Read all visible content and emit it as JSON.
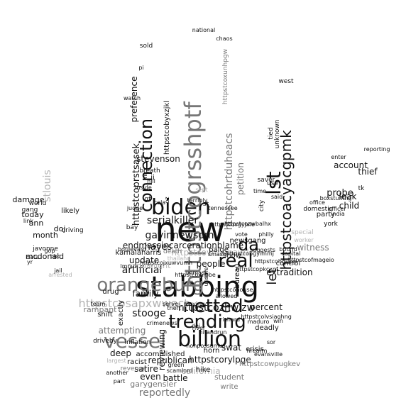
{
  "colors": {
    "background": "#ffffff",
    "dark": "#111111",
    "mid": "#777777",
    "light": "#b3b3b3"
  },
  "words": [
    {
      "text": "new",
      "weight": 100,
      "tone": "dark",
      "dir": "h"
    },
    {
      "text": "stabbing",
      "weight": 80,
      "tone": "dark",
      "dir": "h"
    },
    {
      "text": "biden",
      "weight": 72,
      "tone": "dark",
      "dir": "h"
    },
    {
      "text": "billion",
      "weight": 62,
      "tone": "dark",
      "dir": "h"
    },
    {
      "text": "vessel",
      "weight": 62,
      "tone": "mid",
      "dir": "h"
    },
    {
      "text": "orangeburg",
      "weight": 56,
      "tone": "mid",
      "dir": "h"
    },
    {
      "text": "netted",
      "weight": 55,
      "tone": "dark",
      "dir": "h"
    },
    {
      "text": "trending",
      "weight": 55,
      "tone": "dark",
      "dir": "h"
    },
    {
      "text": "real",
      "weight": 52,
      "tone": "dark",
      "dir": "h"
    },
    {
      "text": "connection",
      "weight": 50,
      "tone": "dark",
      "dir": "v"
    },
    {
      "text": "httpstcogrsshptf",
      "weight": 55,
      "tone": "mid",
      "dir": "v"
    },
    {
      "text": "lst",
      "weight": 50,
      "tone": "dark",
      "dir": "v"
    },
    {
      "text": "httpstcoacyacgpmk",
      "weight": 46,
      "tone": "dark",
      "dir": "v"
    },
    {
      "text": "da",
      "weight": 44,
      "tone": "dark",
      "dir": "h"
    },
    {
      "text": "httpstcohrtduheacs",
      "weight": 38,
      "tone": "mid",
      "dir": "v"
    },
    {
      "text": "petition",
      "weight": 36,
      "tone": "mid",
      "dir": "v"
    },
    {
      "text": "let",
      "weight": 34,
      "tone": "dark",
      "dir": "v"
    },
    {
      "text": "httpstcozhwlzw",
      "weight": 36,
      "tone": "dark",
      "dir": "h"
    },
    {
      "text": "httpstcosapxwwect",
      "weight": 34,
      "tone": "light",
      "dir": "h"
    },
    {
      "text": "httpstcovmxjnavrl",
      "weight": 32,
      "tone": "light",
      "dir": "h"
    },
    {
      "text": "serialkiller",
      "weight": 28,
      "tone": "dark",
      "dir": "h"
    },
    {
      "text": "gavinnewsom",
      "weight": 28,
      "tone": "dark",
      "dir": "h"
    },
    {
      "text": "endmassincarcerationblame",
      "weight": 24,
      "tone": "dark",
      "dir": "h"
    },
    {
      "text": "httpstcoprstsasek",
      "weight": 30,
      "tone": "dark",
      "dir": "v"
    },
    {
      "text": "preference",
      "weight": 26,
      "tone": "dark",
      "dir": "v"
    },
    {
      "text": "stevenson",
      "weight": 26,
      "tone": "dark",
      "dir": "h"
    },
    {
      "text": "httpstcoxunhpgw",
      "weight": 26,
      "tone": "mid",
      "dir": "v"
    },
    {
      "text": "httpstcorylpge",
      "weight": 26,
      "tone": "dark",
      "dir": "h"
    },
    {
      "text": "extradition",
      "weight": 26,
      "tone": "dark",
      "dir": "h"
    },
    {
      "text": "reviewing",
      "weight": 26,
      "tone": "dark",
      "dir": "v"
    },
    {
      "text": "republican",
      "weight": 24,
      "tone": "dark",
      "dir": "h"
    },
    {
      "text": "california",
      "weight": 24,
      "tone": "light",
      "dir": "h"
    },
    {
      "text": "reportedly",
      "weight": 24,
      "tone": "mid",
      "dir": "h"
    },
    {
      "text": "battle",
      "weight": 24,
      "tone": "dark",
      "dir": "h"
    },
    {
      "text": "satire",
      "weight": 24,
      "tone": "dark",
      "dir": "h"
    },
    {
      "text": "swat",
      "weight": 24,
      "tone": "dark",
      "dir": "h"
    },
    {
      "text": "attempting",
      "weight": 24,
      "tone": "mid",
      "dir": "h"
    },
    {
      "text": "artificial",
      "weight": 24,
      "tone": "dark",
      "dir": "h"
    },
    {
      "text": "stooge",
      "weight": 24,
      "tone": "dark",
      "dir": "h"
    },
    {
      "text": "family",
      "weight": 22,
      "tone": "dark",
      "dir": "h"
    },
    {
      "text": "update",
      "weight": 22,
      "tone": "dark",
      "dir": "h"
    },
    {
      "text": "people",
      "weight": 22,
      "tone": "dark",
      "dir": "h"
    },
    {
      "text": "hayes",
      "weight": 22,
      "tone": "dark",
      "dir": "h"
    },
    {
      "text": "witness",
      "weight": 22,
      "tone": "mid",
      "dir": "h"
    },
    {
      "text": "probe",
      "weight": 22,
      "tone": "dark",
      "dir": "h"
    },
    {
      "text": "account",
      "weight": 20,
      "tone": "dark",
      "dir": "h"
    },
    {
      "text": "thief",
      "weight": 20,
      "tone": "dark",
      "dir": "h"
    },
    {
      "text": "leak",
      "weight": 20,
      "tone": "dark",
      "dir": "h"
    },
    {
      "text": "child",
      "weight": 20,
      "tone": "dark",
      "dir": "h"
    },
    {
      "text": "percent",
      "weight": 20,
      "tone": "dark",
      "dir": "h"
    },
    {
      "text": "deadly",
      "weight": 18,
      "tone": "dark",
      "dir": "h"
    },
    {
      "text": "crisis",
      "weight": 18,
      "tone": "dark",
      "dir": "h"
    },
    {
      "text": "horn",
      "weight": 18,
      "tone": "dark",
      "dir": "h"
    },
    {
      "text": "even",
      "weight": 18,
      "tone": "dark",
      "dir": "h"
    },
    {
      "text": "hike",
      "weight": 18,
      "tone": "dark",
      "dir": "h"
    },
    {
      "text": "write",
      "weight": 18,
      "tone": "mid",
      "dir": "h"
    },
    {
      "text": "student",
      "weight": 18,
      "tone": "mid",
      "dir": "h"
    },
    {
      "text": "deep",
      "weight": 18,
      "tone": "dark",
      "dir": "h"
    },
    {
      "text": "accomplished",
      "weight": 18,
      "tone": "dark",
      "dir": "h"
    },
    {
      "text": "inflation",
      "weight": 18,
      "tone": "dark",
      "dir": "h"
    },
    {
      "text": "driveby",
      "weight": 18,
      "tone": "dark",
      "dir": "h"
    },
    {
      "text": "shift",
      "weight": 18,
      "tone": "dark",
      "dir": "h"
    },
    {
      "text": "drug",
      "weight": 18,
      "tone": "dark",
      "dir": "h"
    },
    {
      "text": "rampant",
      "weight": 18,
      "tone": "mid",
      "dir": "h"
    },
    {
      "text": "racist",
      "weight": 16,
      "tone": "dark",
      "dir": "h"
    },
    {
      "text": "revenge",
      "weight": 16,
      "tone": "mid",
      "dir": "h"
    },
    {
      "text": "garygensler",
      "weight": 16,
      "tone": "mid",
      "dir": "h"
    },
    {
      "text": "httpstcowpugkev",
      "weight": 16,
      "tone": "mid",
      "dir": "h"
    },
    {
      "text": "control",
      "weight": 18,
      "tone": "dark",
      "dir": "h"
    },
    {
      "text": "mcdonald",
      "weight": 20,
      "tone": "dark",
      "dir": "h"
    },
    {
      "text": "damage",
      "weight": 20,
      "tone": "dark",
      "dir": "h"
    },
    {
      "text": "today",
      "weight": 20,
      "tone": "dark",
      "dir": "h"
    },
    {
      "text": "month",
      "weight": 20,
      "tone": "dark",
      "dir": "h"
    },
    {
      "text": "ann",
      "weight": 20,
      "tone": "dark",
      "dir": "h"
    },
    {
      "text": "doj",
      "weight": 20,
      "tone": "dark",
      "dir": "h"
    },
    {
      "text": "driving",
      "weight": 18,
      "tone": "dark",
      "dir": "h"
    },
    {
      "text": "likely",
      "weight": 18,
      "tone": "dark",
      "dir": "h"
    },
    {
      "text": "world",
      "weight": 16,
      "tone": "dark",
      "dir": "h"
    },
    {
      "text": "gang",
      "weight": 16,
      "tone": "dark",
      "dir": "h"
    },
    {
      "text": "stlouis",
      "weight": 24,
      "tone": "light",
      "dir": "v"
    },
    {
      "text": "javonne",
      "weight": 14,
      "tone": "dark",
      "dir": "h"
    },
    {
      "text": "show",
      "weight": 18,
      "tone": "dark",
      "dir": "h"
    },
    {
      "text": "paige",
      "weight": 18,
      "tone": "dark",
      "dir": "h"
    },
    {
      "text": "newsgang",
      "weight": 18,
      "tone": "dark",
      "dir": "h"
    },
    {
      "text": "st",
      "weight": 18,
      "tone": "dark",
      "dir": "h"
    },
    {
      "text": "ii",
      "weight": 18,
      "tone": "dark",
      "dir": "h"
    },
    {
      "text": "breath",
      "weight": 16,
      "tone": "dark",
      "dir": "h"
    },
    {
      "text": "sold",
      "weight": 16,
      "tone": "dark",
      "dir": "h"
    },
    {
      "text": "west",
      "weight": 16,
      "tone": "dark",
      "dir": "h"
    },
    {
      "text": "saver",
      "weight": 14,
      "tone": "dark",
      "dir": "h"
    },
    {
      "text": "tied",
      "weight": 14,
      "tone": "dark",
      "dir": "v"
    },
    {
      "text": "unknown",
      "weight": 14,
      "tone": "dark",
      "dir": "v"
    },
    {
      "text": "httpstcobyxzjkl",
      "weight": 18,
      "tone": "dark",
      "dir": "v"
    },
    {
      "text": "city",
      "weight": 14,
      "tone": "dark",
      "dir": "v"
    },
    {
      "text": "use",
      "weight": 14,
      "tone": "dark",
      "dir": "h"
    },
    {
      "text": "party",
      "weight": 16,
      "tone": "dark",
      "dir": "h"
    },
    {
      "text": "domestic",
      "weight": 14,
      "tone": "dark",
      "dir": "h"
    },
    {
      "text": "york",
      "weight": 14,
      "tone": "dark",
      "dir": "h"
    },
    {
      "text": "special",
      "weight": 14,
      "tone": "light",
      "dir": "h"
    },
    {
      "text": "tk",
      "weight": 14,
      "tone": "dark",
      "dir": "h"
    },
    {
      "text": "reporting",
      "weight": 12,
      "tone": "dark",
      "dir": "h"
    },
    {
      "text": "enter",
      "weight": 12,
      "tone": "dark",
      "dir": "h"
    },
    {
      "text": "officer",
      "weight": 12,
      "tone": "dark",
      "dir": "h"
    },
    {
      "text": "boxstuffing",
      "weight": 12,
      "tone": "dark",
      "dir": "h"
    },
    {
      "text": "office",
      "weight": 12,
      "tone": "dark",
      "dir": "h"
    },
    {
      "text": "india",
      "weight": 12,
      "tone": "dark",
      "dir": "h"
    },
    {
      "text": "national",
      "weight": 12,
      "tone": "dark",
      "dir": "h"
    },
    {
      "text": "chaos",
      "weight": 12,
      "tone": "dark",
      "dir": "h"
    },
    {
      "text": "watch",
      "weight": 12,
      "tone": "dark",
      "dir": "h"
    },
    {
      "text": "hill",
      "weight": 12,
      "tone": "dark",
      "dir": "h"
    },
    {
      "text": "inside",
      "weight": 12,
      "tone": "dark",
      "dir": "h"
    },
    {
      "text": "judge",
      "weight": 12,
      "tone": "dark",
      "dir": "h"
    },
    {
      "text": "gt",
      "weight": 14,
      "tone": "dark",
      "dir": "h"
    },
    {
      "text": "bay",
      "weight": 14,
      "tone": "dark",
      "dir": "h"
    },
    {
      "text": "boulevard",
      "weight": 12,
      "tone": "dark",
      "dir": "h"
    },
    {
      "text": "death",
      "weight": 14,
      "tone": "mid",
      "dir": "h"
    },
    {
      "text": "thailand",
      "weight": 12,
      "tone": "light",
      "dir": "h"
    },
    {
      "text": "team",
      "weight": 12,
      "tone": "dark",
      "dir": "h"
    },
    {
      "text": "serve",
      "weight": 12,
      "tone": "dark",
      "dir": "h"
    },
    {
      "text": "theft",
      "weight": 12,
      "tone": "dark",
      "dir": "h"
    },
    {
      "text": "slaying",
      "weight": 12,
      "tone": "dark",
      "dir": "h"
    },
    {
      "text": "green",
      "weight": 12,
      "tone": "dark",
      "dir": "h"
    },
    {
      "text": "scamlord",
      "weight": 12,
      "tone": "dark",
      "dir": "h"
    },
    {
      "text": "another",
      "weight": 12,
      "tone": "dark",
      "dir": "h"
    },
    {
      "text": "part",
      "weight": 12,
      "tone": "dark",
      "dir": "h"
    },
    {
      "text": "largest",
      "weight": 12,
      "tone": "light",
      "dir": "h"
    },
    {
      "text": "win",
      "weight": 12,
      "tone": "dark",
      "dir": "h"
    },
    {
      "text": "sor",
      "weight": 12,
      "tone": "dark",
      "dir": "h"
    },
    {
      "text": "firearm",
      "weight": 12,
      "tone": "dark",
      "dir": "h"
    },
    {
      "text": "evansville",
      "weight": 12,
      "tone": "dark",
      "dir": "h"
    },
    {
      "text": "maduro",
      "weight": 12,
      "tone": "dark",
      "dir": "h"
    },
    {
      "text": "river",
      "weight": 12,
      "tone": "dark",
      "dir": "h"
    },
    {
      "text": "vote",
      "weight": 12,
      "tone": "dark",
      "dir": "h"
    },
    {
      "text": "suggests",
      "weight": 12,
      "tone": "dark",
      "dir": "h"
    },
    {
      "text": "capital",
      "weight": 12,
      "tone": "dark",
      "dir": "h"
    },
    {
      "text": "bound",
      "weight": 12,
      "tone": "dark",
      "dir": "h"
    },
    {
      "text": "worker",
      "weight": 12,
      "tone": "light",
      "dir": "h"
    },
    {
      "text": "philly",
      "weight": 12,
      "tone": "dark",
      "dir": "h"
    },
    {
      "text": "said",
      "weight": 12,
      "tone": "dark",
      "dir": "h"
    },
    {
      "text": "time",
      "weight": 12,
      "tone": "dark",
      "dir": "h"
    },
    {
      "text": "tennessee",
      "weight": 12,
      "tone": "dark",
      "dir": "h"
    },
    {
      "text": "terribly",
      "weight": 12,
      "tone": "dark",
      "dir": "h"
    },
    {
      "text": "sept",
      "weight": 12,
      "tone": "light",
      "dir": "h"
    },
    {
      "text": "link",
      "weight": 12,
      "tone": "dark",
      "dir": "h"
    },
    {
      "text": "data",
      "weight": 12,
      "tone": "dark",
      "dir": "h"
    },
    {
      "text": "yr",
      "weight": 12,
      "tone": "dark",
      "dir": "h"
    },
    {
      "text": "arrested",
      "weight": 12,
      "tone": "light",
      "dir": "h"
    },
    {
      "text": "candlelight",
      "weight": 12,
      "tone": "light",
      "dir": "h"
    },
    {
      "text": "crimenews",
      "weight": 12,
      "tone": "dark",
      "dir": "h"
    },
    {
      "text": "httpstcojxuwvumh",
      "weight": 18,
      "tone": "dark",
      "dir": "h"
    },
    {
      "text": "httpstcoihlpbe",
      "weight": 12,
      "tone": "dark",
      "dir": "h"
    },
    {
      "text": "httpstcohouse",
      "weight": 12,
      "tone": "dark",
      "dir": "h"
    },
    {
      "text": "httpstcolvsiaqhng",
      "weight": 12,
      "tone": "dark",
      "dir": "h"
    },
    {
      "text": "httpstcohgupg",
      "weight": 12,
      "tone": "dark",
      "dir": "h"
    },
    {
      "text": "httpstcopkcxqf",
      "weight": 12,
      "tone": "dark",
      "dir": "h"
    },
    {
      "text": "httpstcofmageio",
      "weight": 12,
      "tone": "dark",
      "dir": "h"
    },
    {
      "text": "httpstcovgyjxie",
      "weight": 12,
      "tone": "dark",
      "dir": "h"
    },
    {
      "text": "httpstcozwbalhx",
      "weight": 12,
      "tone": "dark",
      "dir": "h"
    },
    {
      "text": "httpstcobgyimmj",
      "weight": 12,
      "tone": "dark",
      "dir": "h"
    },
    {
      "text": "hitandrun",
      "weight": 12,
      "tone": "dark",
      "dir": "h"
    },
    {
      "text": "richard",
      "weight": 12,
      "tone": "dark",
      "dir": "h"
    },
    {
      "text": "unmask",
      "weight": 12,
      "tone": "dark",
      "dir": "h"
    },
    {
      "text": "nonpossumus",
      "weight": 12,
      "tone": "dark",
      "dir": "h"
    },
    {
      "text": "allowed",
      "weight": 12,
      "tone": "dark",
      "dir": "h"
    },
    {
      "text": "jail",
      "weight": 12,
      "tone": "dark",
      "dir": "h"
    },
    {
      "text": "gop",
      "weight": 12,
      "tone": "dark",
      "dir": "h"
    },
    {
      "text": "kamalaharris",
      "weight": 12,
      "tone": "dark",
      "dir": "h"
    },
    {
      "text": "bureau",
      "weight": 12,
      "tone": "dark",
      "dir": "v"
    },
    {
      "text": "smash",
      "weight": 12,
      "tone": "dark",
      "dir": "h"
    },
    {
      "text": "lmnua",
      "weight": 12,
      "tone": "dark",
      "dir": "h"
    },
    {
      "text": "exactly",
      "weight": 14,
      "tone": "dark",
      "dir": "v"
    },
    {
      "text": "oz",
      "weight": 14,
      "tone": "dark",
      "dir": "v"
    },
    {
      "text": "cola",
      "weight": 12,
      "tone": "dark",
      "dir": "h"
    },
    {
      "text": "pi",
      "weight": 12,
      "tone": "dark",
      "dir": "h"
    },
    {
      "text": "mic",
      "weight": 14,
      "tone": "dark",
      "dir": "v"
    },
    {
      "text": "dei",
      "weight": 12,
      "tone": "dark",
      "dir": "h"
    },
    {
      "text": "bbc",
      "weight": 12,
      "tone": "dark",
      "dir": "h"
    },
    {
      "text": "unsafe",
      "weight": 12,
      "tone": "dark",
      "dir": "v"
    },
    {
      "text": "setup",
      "weight": 12,
      "tone": "dark",
      "dir": "v"
    },
    {
      "text": "key",
      "weight": 12,
      "tone": "dark",
      "dir": "v"
    },
    {
      "text": "day",
      "weight": 12,
      "tone": "dark",
      "dir": "h"
    },
    {
      "text": "opinion",
      "weight": 12,
      "tone": "light",
      "dir": "h"
    }
  ]
}
